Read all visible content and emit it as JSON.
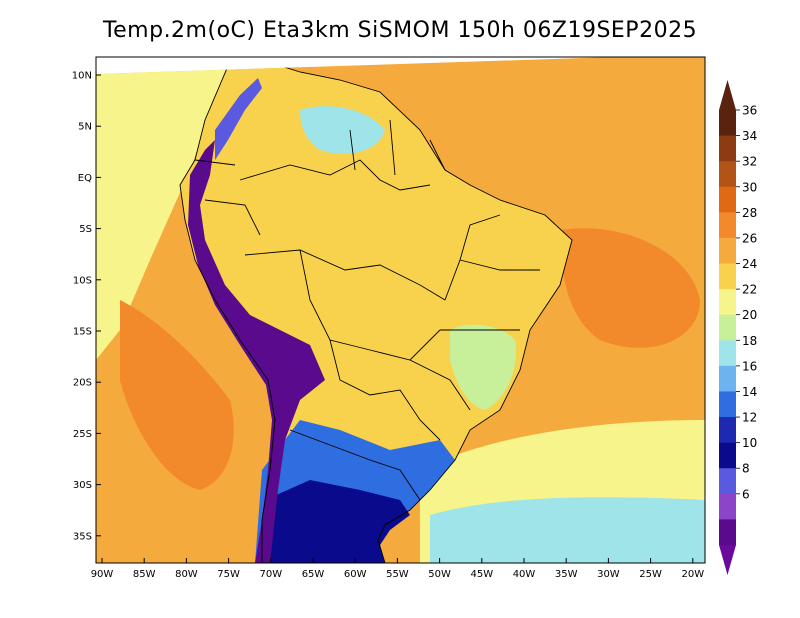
{
  "title": "Temp.2m(oC) Eta3km SiSMOM 150h 06Z19SEP2025",
  "lat_labels": [
    "10N",
    "5N",
    "EQ",
    "5S",
    "10S",
    "15S",
    "20S",
    "25S",
    "30S",
    "35S"
  ],
  "lon_labels": [
    "90W",
    "85W",
    "80W",
    "75W",
    "70W",
    "65W",
    "60W",
    "55W",
    "50W",
    "45W",
    "40W",
    "35W",
    "30W",
    "25W",
    "20W"
  ],
  "colorbar": {
    "labels": [
      "36",
      "34",
      "32",
      "30",
      "28",
      "26",
      "24",
      "22",
      "20",
      "18",
      "16",
      "14",
      "12",
      "10",
      "8",
      "6"
    ],
    "colors": [
      "#5a2310",
      "#8c3b13",
      "#b35417",
      "#e06a14",
      "#f28a2c",
      "#f4aa3c",
      "#f8d24c",
      "#f6f48a",
      "#c8f09a",
      "#9ee4e8",
      "#6cb4f0",
      "#2e6ee0",
      "#1e28b0",
      "#0a0a8c",
      "#5a5ae0",
      "#8c44c8",
      "#5a0a8c"
    ],
    "low_color": "#6a0a9c",
    "high_color": "#5a2310"
  },
  "map": {
    "ocean_color": "#f4aa3c",
    "ocean_warm_color": "#f28a2c",
    "ocean_cool_color": "#f6f48a",
    "land_color": "#f8d24c",
    "andes_color": "#5a0a8c",
    "south_cold_color": "#2e6ee0"
  }
}
